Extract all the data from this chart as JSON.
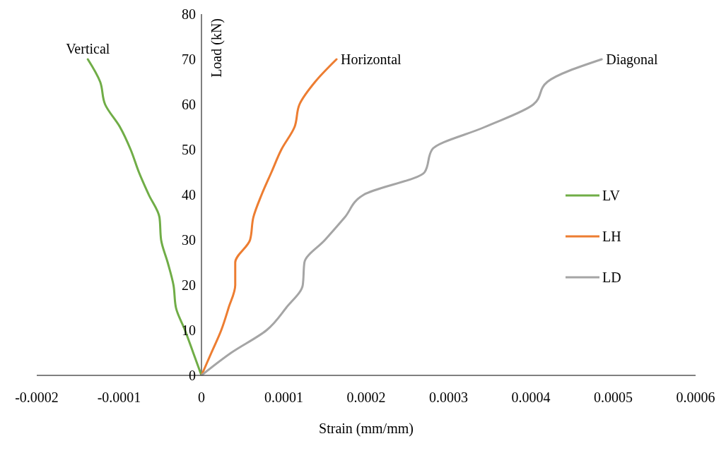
{
  "chart_data": {
    "type": "line",
    "xlabel": "Strain (mm/mm)",
    "ylabel": "Load (kN)",
    "series": [
      {
        "name": "LV",
        "color": "#70ad47",
        "x": [
          0,
          -1e-05,
          -2e-05,
          -3.1e-05,
          -3.4e-05,
          -4.1e-05,
          -4.9e-05,
          -5.1e-05,
          -6.4e-05,
          -7.6e-05,
          -8.6e-05,
          -9.9e-05,
          -0.000117,
          -0.000123,
          -0.000138
        ],
        "values": [
          0,
          5,
          10,
          15,
          20,
          25,
          30,
          35,
          40,
          45,
          50,
          55,
          60,
          65,
          70
        ]
      },
      {
        "name": "LH",
        "color": "#ed7d31",
        "x": [
          0,
          1.2e-05,
          2.4e-05,
          3.3e-05,
          4.1e-05,
          4.1e-05,
          5.9e-05,
          6.3e-05,
          7.3e-05,
          8.5e-05,
          9.7e-05,
          0.000113,
          0.000119,
          0.000138,
          0.000164
        ],
        "values": [
          0,
          5,
          10,
          15,
          20,
          25,
          30,
          35,
          40,
          45,
          50,
          55,
          60,
          65,
          70
        ]
      },
      {
        "name": "LD",
        "color": "#a5a5a5",
        "x": [
          0,
          3.6e-05,
          7.9e-05,
          0.000103,
          0.000123,
          0.000125,
          0.00015,
          0.000174,
          0.000197,
          0.000271,
          0.00028,
          0.000344,
          0.000403,
          0.00042,
          0.000486
        ],
        "values": [
          0,
          5,
          10,
          15,
          20,
          25,
          30,
          35,
          40,
          45,
          50,
          55,
          60,
          65,
          70
        ]
      }
    ],
    "xlim": [
      -0.0002,
      0.0006
    ],
    "xticks": [
      -0.0002,
      -0.0001,
      0,
      0.0001,
      0.0002,
      0.0003,
      0.0004,
      0.0005,
      0.0006
    ],
    "ylim": [
      0,
      80
    ],
    "yticks": [
      0,
      10,
      20,
      30,
      40,
      50,
      60,
      70,
      80
    ],
    "annotations": [
      {
        "text": "Vertical",
        "x": -0.000138,
        "y": 70
      },
      {
        "text": "Horizontal",
        "x": 0.000164,
        "y": 70
      },
      {
        "text": "Diagonal",
        "x": 0.000486,
        "y": 70
      }
    ],
    "grid": false,
    "legend": "right",
    "marker": "none",
    "line_style": "solid"
  }
}
